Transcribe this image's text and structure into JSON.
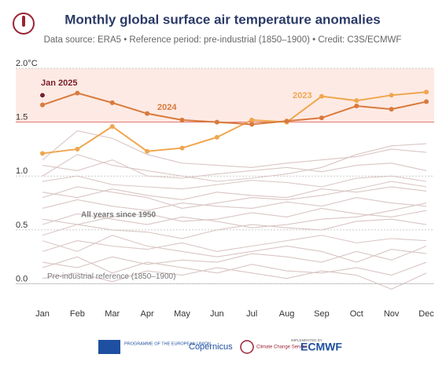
{
  "chart_data": {
    "type": "line",
    "title": "Monthly global surface air temperature anomalies",
    "subtitle": "Data source: ERA5 • Reference period: pre-industrial (1850–1900) • Credit: C3S/ECMWF",
    "categories": [
      "Jan",
      "Feb",
      "Mar",
      "Apr",
      "May",
      "Jun",
      "Jul",
      "Aug",
      "Sep",
      "Oct",
      "Nov",
      "Dec"
    ],
    "ylim": [
      -0.12,
      2.0
    ],
    "yticks": [
      {
        "value": 0,
        "label": "0.0"
      },
      0.5,
      {
        "value": 1,
        "label": "1.0"
      },
      1.5,
      {
        "value": 2,
        "label": "2.0°C"
      }
    ],
    "grid": true,
    "band": {
      "from": 1.5,
      "to": 2,
      "color": "#fbdcd2"
    },
    "reference": {
      "value": 0,
      "label": "Pre-industrial reference (1850–1900)"
    },
    "background_series": {
      "label": "All years since 1950",
      "color": "#d9c6c4",
      "values": [
        [
          0.05,
          0.1,
          0.02,
          0.12,
          0.08,
          0.15,
          0.1,
          0.05,
          0.12,
          0.08,
          -0.05,
          0.1
        ],
        [
          0.2,
          0.15,
          0.25,
          0.18,
          0.22,
          0.2,
          0.28,
          0.25,
          0.2,
          0.3,
          0.22,
          0.35
        ],
        [
          0.3,
          0.4,
          0.35,
          0.32,
          0.38,
          0.3,
          0.35,
          0.4,
          0.45,
          0.38,
          0.42,
          0.4
        ],
        [
          0.45,
          0.55,
          0.5,
          0.48,
          0.42,
          0.5,
          0.55,
          0.52,
          0.5,
          0.58,
          0.6,
          0.55
        ],
        [
          0.6,
          0.55,
          0.62,
          0.65,
          0.58,
          0.6,
          0.66,
          0.62,
          0.7,
          0.65,
          0.62,
          0.68
        ],
        [
          0.7,
          0.78,
          0.72,
          0.68,
          0.75,
          0.72,
          0.7,
          0.76,
          0.72,
          0.8,
          0.75,
          0.72
        ],
        [
          0.85,
          0.8,
          0.88,
          0.82,
          0.78,
          0.85,
          0.82,
          0.8,
          0.88,
          0.85,
          0.9,
          0.86
        ],
        [
          0.95,
          1.0,
          0.92,
          0.9,
          0.88,
          0.92,
          0.96,
          0.94,
          0.9,
          0.98,
          1.0,
          0.95
        ],
        [
          1.1,
          1.05,
          1.15,
          1.0,
          0.98,
          1.02,
          1.05,
          1.08,
          1.04,
          1.1,
          1.12,
          1.05
        ],
        [
          1.15,
          1.42,
          1.35,
          1.2,
          1.12,
          1.1,
          1.08,
          1.12,
          1.15,
          1.18,
          1.25,
          1.22
        ],
        [
          1.0,
          1.2,
          1.1,
          1.05,
          1.0,
          0.95,
          0.98,
          1.02,
          1.08,
          1.2,
          1.28,
          1.3
        ],
        [
          0.4,
          0.3,
          0.45,
          0.35,
          0.3,
          0.25,
          0.3,
          0.35,
          0.3,
          0.2,
          0.32,
          0.28
        ],
        [
          0.15,
          0.25,
          0.1,
          0.2,
          0.15,
          0.1,
          0.18,
          0.12,
          0.1,
          0.15,
          0.08,
          0.2
        ],
        [
          0.55,
          0.65,
          0.6,
          0.55,
          0.62,
          0.58,
          0.52,
          0.55,
          0.6,
          0.62,
          0.68,
          0.75
        ],
        [
          0.8,
          0.9,
          0.85,
          0.8,
          0.7,
          0.75,
          0.8,
          0.78,
          0.82,
          0.88,
          0.95,
          0.9
        ]
      ]
    },
    "series": [
      {
        "name": "2023",
        "color": "#f0a64e",
        "values": [
          1.21,
          1.25,
          1.46,
          1.23,
          1.26,
          1.36,
          1.52,
          1.5,
          1.74,
          1.7,
          1.75,
          1.78
        ]
      },
      {
        "name": "2024",
        "color": "#d97a3c",
        "values": [
          1.66,
          1.77,
          1.68,
          1.58,
          1.52,
          1.5,
          1.48,
          1.51,
          1.54,
          1.65,
          1.62,
          1.69
        ]
      },
      {
        "name": "Jan 2025",
        "color": "#7a1f2b",
        "values": [
          1.75,
          null,
          null,
          null,
          null,
          null,
          null,
          null,
          null,
          null,
          null,
          null
        ]
      }
    ]
  },
  "footer": {
    "eu": "PROGRAMME OF THE EUROPEAN UNION",
    "copernicus": "Copernicus",
    "c3s": "Climate Change Service",
    "implemented": "IMPLEMENTED BY",
    "ecmwf": "ECMWF"
  }
}
